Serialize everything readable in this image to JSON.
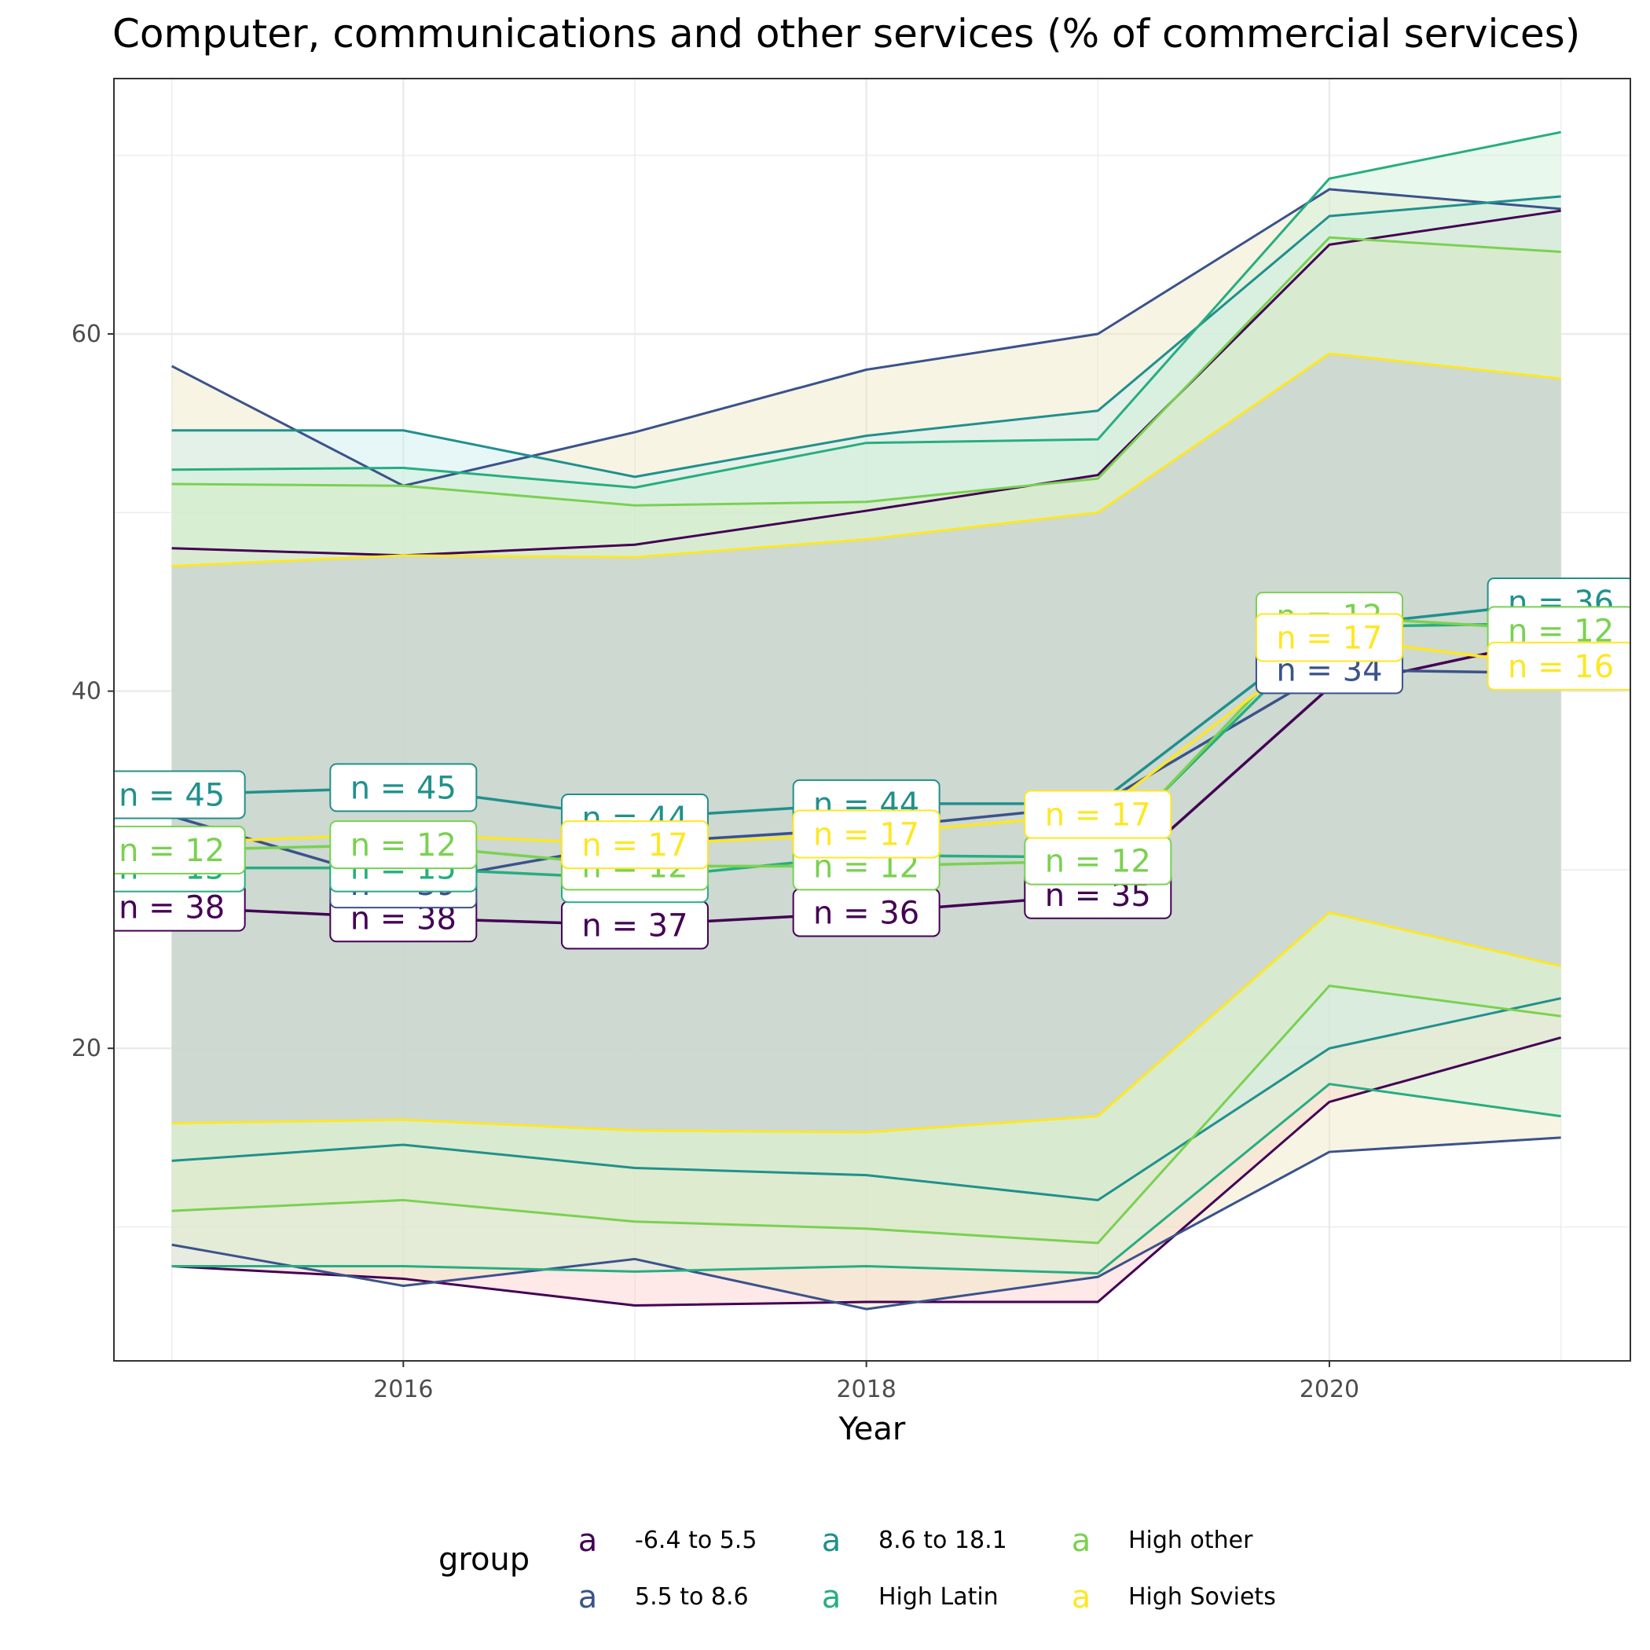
{
  "chart_data": {
    "type": "line",
    "title": "Computer, communications and other services (% of commercial services)",
    "xlabel": "Year",
    "ylabel": "",
    "xlim": [
      2014.75,
      2021.3
    ],
    "ylim": [
      2.5,
      74.3
    ],
    "x_ticks": [
      2016,
      2018,
      2020
    ],
    "y_ticks": [
      20,
      40,
      60
    ],
    "grid": true,
    "legend_title": "group",
    "legend_position": "bottom",
    "legend_key_glyph": "a",
    "x": [
      2015,
      2016,
      2017,
      2018,
      2019,
      2020,
      2021
    ],
    "series": [
      {
        "name": "-6.4 to 5.5",
        "color": "#440154",
        "mean": [
          27.9,
          27.3,
          26.9,
          27.6,
          28.6,
          40.2,
          43.0
        ],
        "upper": [
          48.0,
          47.6,
          48.2,
          50.1,
          52.1,
          65.0,
          66.9
        ],
        "lower": [
          7.8,
          7.1,
          5.6,
          5.8,
          5.8,
          17.0,
          20.6
        ],
        "n": [
          "n = 38",
          "n = 38",
          "n = 37",
          "n = 36",
          "n = 35",
          "",
          ""
        ]
      },
      {
        "name": "5.5 to 8.6",
        "color": "#3b528b",
        "mean": [
          33.0,
          29.2,
          31.5,
          32.3,
          33.6,
          41.2,
          41.0
        ],
        "upper": [
          58.2,
          51.5,
          54.5,
          58.0,
          60.0,
          68.1,
          67.0
        ],
        "lower": [
          9.0,
          6.7,
          8.2,
          5.4,
          7.2,
          14.2,
          15.0
        ],
        "n": [
          "",
          "n = 39",
          "",
          "",
          "",
          "n = 34",
          ""
        ]
      },
      {
        "name": "8.6 to 18.1",
        "color": "#21908c",
        "mean": [
          34.2,
          34.6,
          32.9,
          33.7,
          33.7,
          43.6,
          45.0
        ],
        "upper": [
          54.6,
          54.6,
          52.0,
          54.3,
          55.7,
          66.6,
          67.7
        ],
        "lower": [
          13.7,
          14.6,
          13.3,
          12.9,
          11.5,
          20.0,
          22.8
        ],
        "n": [
          "n = 45",
          "n = 45",
          "n = 44",
          "n = 44",
          "",
          "",
          "n = 36"
        ]
      },
      {
        "name": "High Latin",
        "color": "#27ad81",
        "mean": [
          30.1,
          30.1,
          29.5,
          30.8,
          30.7,
          43.6,
          43.8
        ],
        "upper": [
          52.4,
          52.5,
          51.4,
          53.9,
          54.1,
          68.7,
          71.3
        ],
        "lower": [
          7.8,
          7.8,
          7.5,
          7.8,
          7.4,
          18.0,
          16.2
        ],
        "n": [
          "n = 15",
          "n = 15",
          "n = 15",
          "",
          "",
          "",
          ""
        ]
      },
      {
        "name": "High other",
        "color": "#7ad151",
        "mean": [
          31.1,
          31.4,
          30.2,
          30.2,
          30.5,
          44.2,
          43.4
        ],
        "upper": [
          51.6,
          51.5,
          50.4,
          50.6,
          51.9,
          65.4,
          64.6
        ],
        "lower": [
          10.9,
          11.5,
          10.3,
          9.9,
          9.1,
          23.5,
          21.8
        ],
        "n": [
          "n = 12",
          "n = 12",
          "n = 12",
          "n = 12",
          "n = 12",
          "n = 12",
          "n = 12"
        ]
      },
      {
        "name": "High Soviets",
        "color": "#fde725",
        "mean": [
          31.5,
          32.0,
          31.4,
          32.0,
          33.1,
          43.0,
          41.4
        ],
        "upper": [
          47.0,
          47.6,
          47.5,
          48.5,
          50.0,
          58.9,
          57.5
        ],
        "lower": [
          15.8,
          16.0,
          15.4,
          15.3,
          16.2,
          27.6,
          24.6
        ],
        "n": [
          "",
          "",
          "n = 17",
          "n = 17",
          "n = 17",
          "n = 17",
          "n = 16"
        ]
      }
    ]
  }
}
